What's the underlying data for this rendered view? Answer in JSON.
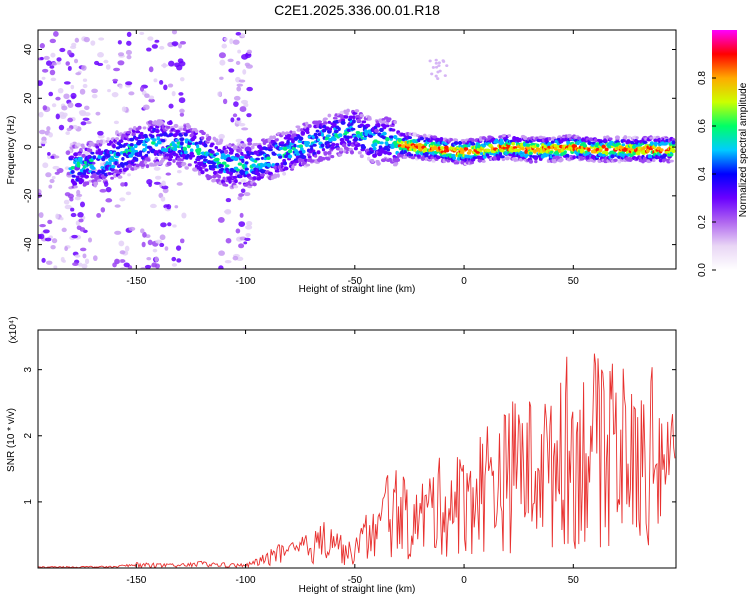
{
  "title": "C2E1.2025.336.00.01.R18",
  "chart_data": [
    {
      "type": "heatmap",
      "xlabel": "Height of straight line (km)",
      "ylabel": "Frequency (Hz)",
      "xlim": [
        -195,
        97
      ],
      "ylim": [
        -50,
        48
      ],
      "xticks": [
        -150,
        -100,
        -50,
        0,
        50
      ],
      "yticks": [
        -40,
        -20,
        0,
        20,
        40
      ],
      "ridge": {
        "x": [
          -175,
          -160,
          -150,
          -140,
          -125,
          -115,
          -105,
          -95,
          -85,
          -75,
          -65,
          -55,
          -50,
          -45,
          -40,
          -35,
          -30,
          -20,
          -10,
          0,
          10,
          20,
          30,
          40,
          50,
          60,
          70,
          80,
          95
        ],
        "y": [
          -8,
          -5,
          0,
          2,
          0,
          -5,
          -8,
          -7,
          -3,
          0,
          3,
          6,
          7,
          4,
          2,
          3,
          1,
          0,
          -1,
          -2,
          -1,
          0,
          -1,
          -1,
          0,
          -1,
          -1,
          -1,
          -1
        ]
      },
      "colorbar": {
        "label": "Normalized spectral amplitude",
        "range": [
          0,
          1
        ],
        "ticks": [
          "0.0",
          "0.2",
          "0.4",
          "0.6",
          "0.8"
        ],
        "colors": [
          "#ffffff",
          "#e9d6f5",
          "#b066f0",
          "#6a00ff",
          "#0000ff",
          "#00ccff",
          "#00ff66",
          "#ccff00",
          "#ffaa00",
          "#ff0000",
          "#ff00ff"
        ]
      }
    },
    {
      "type": "line",
      "xlabel": "Height of straight line (km)",
      "ylabel": "SNR (10 * v/v)",
      "yunit": "(x10⁴)",
      "xlim": [
        -195,
        97
      ],
      "ylim": [
        0,
        3.6
      ],
      "xticks": [
        -150,
        -100,
        -50,
        0,
        50
      ],
      "yticks": [
        1,
        2,
        3
      ],
      "color": "#e8302e",
      "envelope": {
        "x": [
          -195,
          -160,
          -150,
          -130,
          -120,
          -110,
          -100,
          -95,
          -90,
          -85,
          -80,
          -75,
          -70,
          -65,
          -60,
          -55,
          -50,
          -45,
          -40,
          -35,
          -30,
          -25,
          -20,
          -15,
          -10,
          -5,
          0,
          5,
          10,
          15,
          20,
          25,
          30,
          35,
          40,
          45,
          50,
          55,
          60,
          65,
          70,
          75,
          80,
          85,
          90,
          97
        ],
        "y": [
          0.02,
          0.03,
          0.08,
          0.06,
          0.1,
          0.08,
          0.06,
          0.15,
          0.25,
          0.35,
          0.35,
          0.45,
          0.55,
          0.65,
          0.9,
          0.4,
          0.4,
          0.8,
          0.9,
          1.4,
          1.6,
          1.1,
          1.3,
          1.6,
          1.7,
          1.6,
          1.8,
          2.0,
          2.3,
          2.4,
          2.4,
          2.8,
          2.6,
          2.9,
          2.5,
          3.5,
          2.9,
          3.1,
          3.3,
          2.8,
          3.3,
          2.8,
          2.6,
          3.0,
          3.2,
          2.5
        ]
      }
    }
  ]
}
